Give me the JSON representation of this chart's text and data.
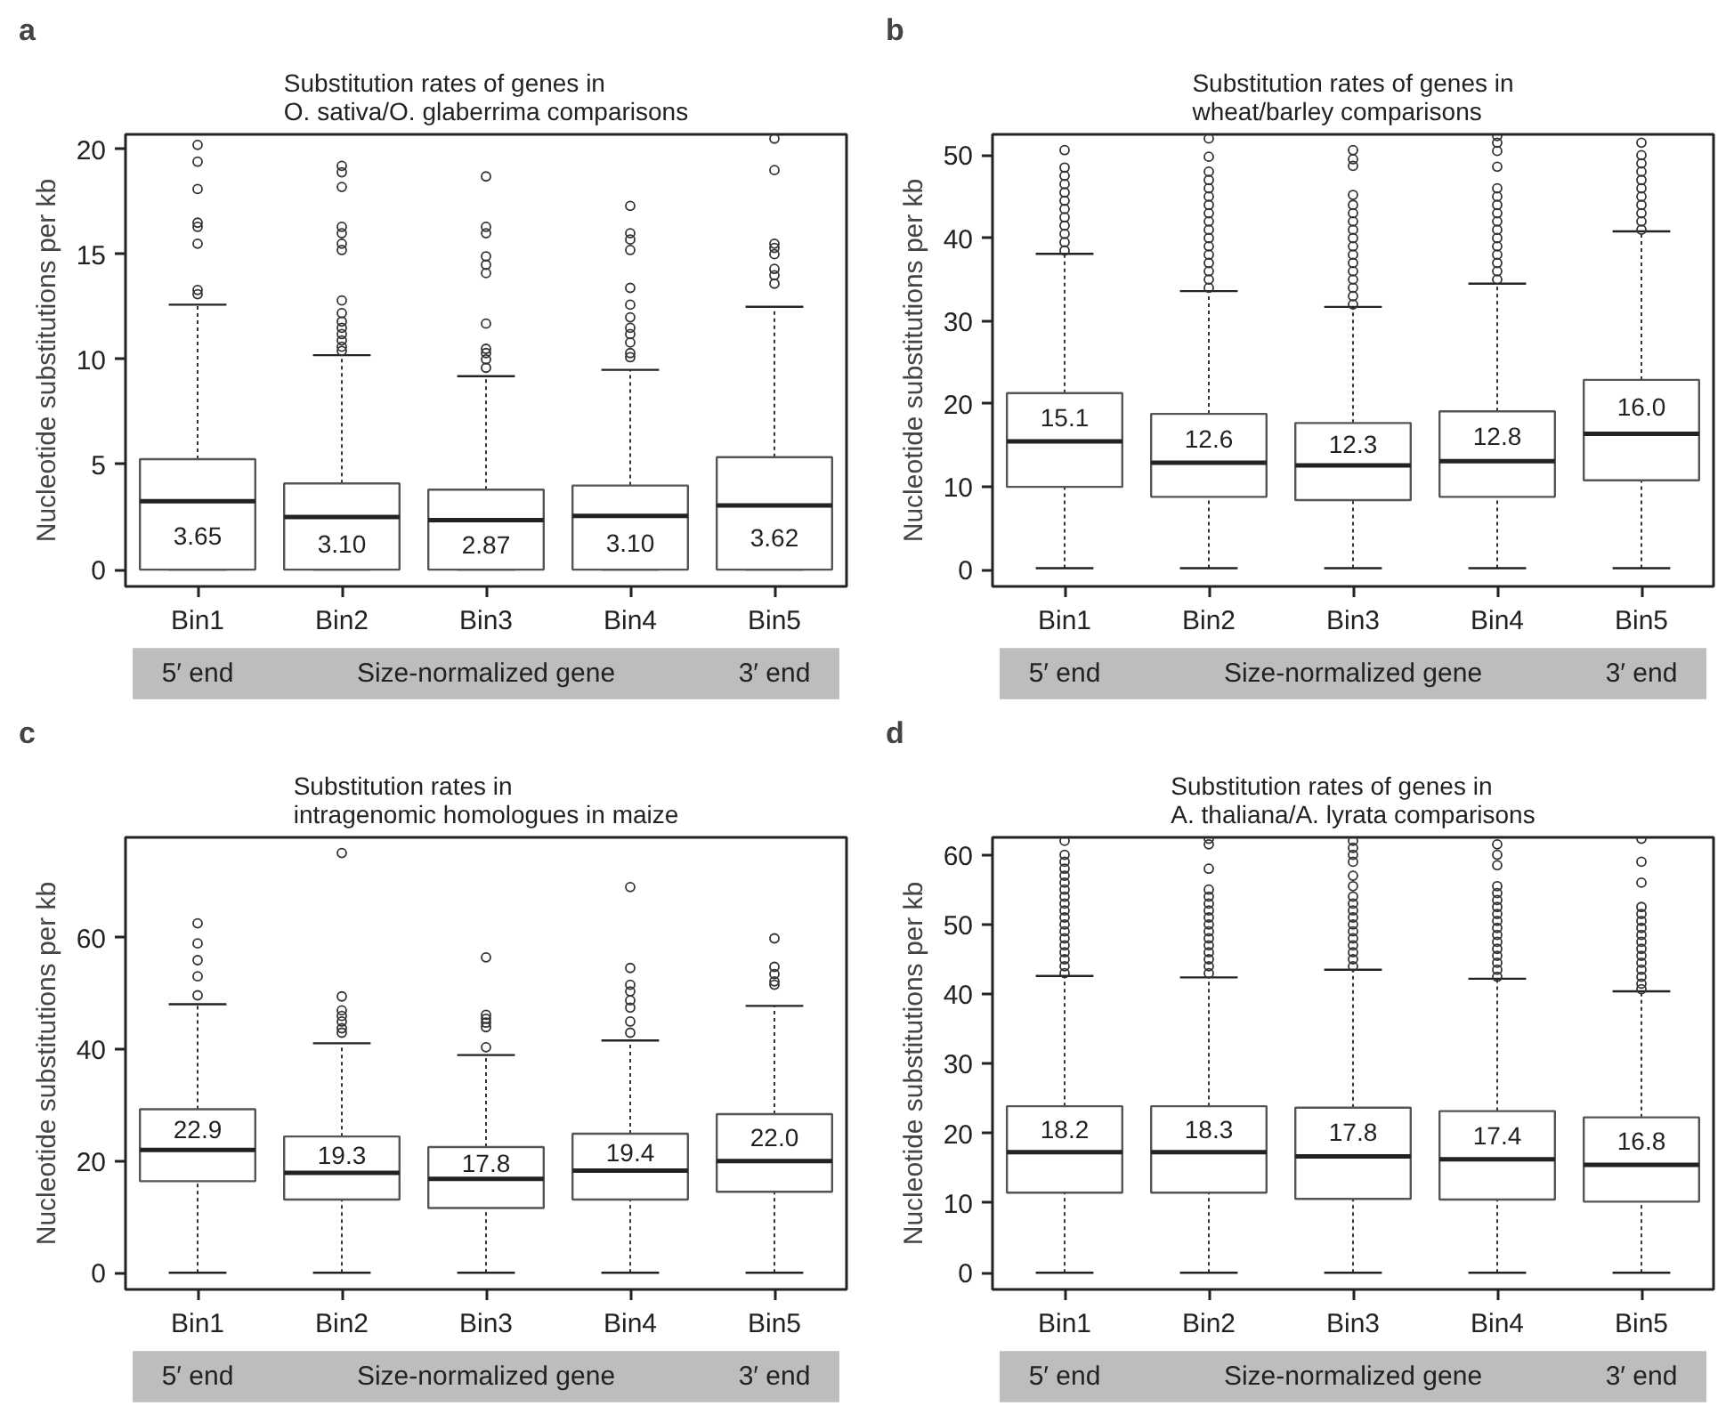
{
  "chart_data": [
    {
      "type": "box",
      "title": "Substitution rates of genes in\nO. sativa/O. glaberrima comparisons",
      "ylabel": "Nucleotide substitutions per kb",
      "categories": [
        "Bin1",
        "Bin2",
        "Bin3",
        "Bin4",
        "Bin5"
      ],
      "ylim": [
        -0.8,
        20.7
      ],
      "yticks": [
        0,
        5,
        10,
        15,
        20
      ],
      "annotations": [
        "a",
        "5′ end",
        "Size-normalized gene",
        "3′ end"
      ],
      "value_labels": [
        "3.65",
        "3.10",
        "2.87",
        "3.10",
        "3.62"
      ],
      "boxes": [
        {
          "low": 0,
          "q1": 0,
          "median": 3.25,
          "q3": 5.25,
          "high": 12.6,
          "outliers": [
            13.1,
            13.3,
            15.5,
            16.3,
            16.5,
            18.1,
            19.4,
            20.2
          ]
        },
        {
          "low": 0,
          "q1": 0,
          "median": 2.5,
          "q3": 4.1,
          "high": 10.2,
          "outliers": [
            10.4,
            10.6,
            10.9,
            11.2,
            11.5,
            11.8,
            12.2,
            12.8,
            15.2,
            15.5,
            16.0,
            16.3,
            18.2,
            18.9,
            19.2
          ]
        },
        {
          "low": 0,
          "q1": 0,
          "median": 2.35,
          "q3": 3.8,
          "high": 9.2,
          "outliers": [
            9.6,
            10.0,
            10.3,
            10.5,
            11.7,
            14.1,
            14.5,
            14.9,
            16.0,
            16.3,
            18.7
          ]
        },
        {
          "low": 0,
          "q1": 0,
          "median": 2.55,
          "q3": 4.0,
          "high": 9.5,
          "outliers": [
            10.1,
            10.3,
            10.8,
            11.2,
            11.5,
            12.0,
            12.6,
            13.4,
            15.2,
            15.7,
            16.0,
            17.3
          ]
        },
        {
          "low": 0,
          "q1": 0,
          "median": 3.05,
          "q3": 5.35,
          "high": 12.5,
          "outliers": [
            13.6,
            14.0,
            14.3,
            15.0,
            15.3,
            15.5,
            19.0,
            20.5
          ]
        }
      ]
    },
    {
      "type": "box",
      "title": "Substitution rates of genes in\nwheat/barley comparisons",
      "ylabel": "Nucleotide substitutions per kb",
      "categories": [
        "Bin1",
        "Bin2",
        "Bin3",
        "Bin4",
        "Bin5"
      ],
      "ylim": [
        -2,
        52.5
      ],
      "yticks": [
        0,
        10,
        20,
        30,
        40,
        50
      ],
      "annotations": [
        "b",
        "5′ end",
        "Size-normalized gene",
        "3′ end"
      ],
      "value_labels": [
        "15.1",
        "12.6",
        "12.3",
        "12.8",
        "16.0"
      ],
      "boxes": [
        {
          "low": 0.2,
          "q1": 10.0,
          "median": 15.5,
          "q3": 21.3,
          "high": 38.1,
          "outliers": [
            38.5,
            39.5,
            40.5,
            41.5,
            42.5,
            43.5,
            44.5,
            45.5,
            46.5,
            47.5,
            48.5,
            50.6
          ]
        },
        {
          "low": 0.2,
          "q1": 8.8,
          "median": 12.9,
          "q3": 18.8,
          "high": 33.6,
          "outliers": [
            34,
            35,
            36,
            37,
            38,
            39,
            40,
            41,
            42,
            43,
            44,
            45,
            46,
            47,
            48,
            49.8,
            52.0
          ]
        },
        {
          "low": 0.2,
          "q1": 8.4,
          "median": 12.6,
          "q3": 17.7,
          "high": 31.7,
          "outliers": [
            32,
            33,
            34,
            35,
            36,
            37,
            38,
            39,
            40,
            41,
            42,
            43,
            44,
            45.2,
            48.7,
            49.5,
            50.6
          ]
        },
        {
          "low": 0.2,
          "q1": 8.8,
          "median": 13.1,
          "q3": 19.1,
          "high": 34.5,
          "outliers": [
            35,
            36,
            37,
            38,
            39,
            40,
            41,
            42,
            43,
            44,
            45,
            46,
            48.6,
            50.5,
            51.5,
            52.3
          ]
        },
        {
          "low": 0.2,
          "q1": 10.8,
          "median": 16.4,
          "q3": 22.9,
          "high": 40.8,
          "outliers": [
            41,
            42,
            43,
            44,
            45,
            46,
            47,
            48,
            49,
            50,
            51.5
          ]
        }
      ]
    },
    {
      "type": "box",
      "title": "Substitution rates in\nintragenomic homologues in maize",
      "ylabel": "Nucleotide substitutions per kb",
      "categories": [
        "Bin1",
        "Bin2",
        "Bin3",
        "Bin4",
        "Bin5"
      ],
      "ylim": [
        -3,
        78
      ],
      "yticks": [
        0,
        20,
        40,
        60
      ],
      "annotations": [
        "c",
        "5′ end",
        "Size-normalized gene",
        "3′ end"
      ],
      "value_labels": [
        "22.9",
        "19.3",
        "17.8",
        "19.4",
        "22.0"
      ],
      "boxes": [
        {
          "low": 0,
          "q1": 16.4,
          "median": 22.0,
          "q3": 29.3,
          "high": 48.1,
          "outliers": [
            49.7,
            53.1,
            56.0,
            59.0,
            62.6
          ]
        },
        {
          "low": 0,
          "q1": 13.1,
          "median": 17.9,
          "q3": 24.4,
          "high": 41.1,
          "outliers": [
            43.0,
            43.8,
            45.0,
            46.0,
            47.0,
            49.5,
            75.2
          ]
        },
        {
          "low": 0,
          "q1": 11.6,
          "median": 16.8,
          "q3": 22.5,
          "high": 39.0,
          "outliers": [
            40.4,
            44.0,
            44.8,
            45.5,
            46.2,
            56.5
          ]
        },
        {
          "low": 0,
          "q1": 13.1,
          "median": 18.3,
          "q3": 24.9,
          "high": 41.6,
          "outliers": [
            43.0,
            45.0,
            47.5,
            48.8,
            50.4,
            51.6,
            54.6,
            69.1
          ]
        },
        {
          "low": 0,
          "q1": 14.5,
          "median": 20.0,
          "q3": 28.4,
          "high": 47.8,
          "outliers": [
            51.6,
            52.2,
            53.5,
            54.8,
            59.9
          ]
        }
      ]
    },
    {
      "type": "box",
      "title": "Substitution rates of genes in\nA. thaliana/A. lyrata comparisons",
      "ylabel": "Nucleotide substitutions per kb",
      "categories": [
        "Bin1",
        "Bin2",
        "Bin3",
        "Bin4",
        "Bin5"
      ],
      "ylim": [
        -2.4,
        62.5
      ],
      "yticks": [
        0,
        10,
        20,
        30,
        40,
        50,
        60
      ],
      "annotations": [
        "d",
        "5′ end",
        "Size-normalized gene",
        "3′ end"
      ],
      "value_labels": [
        "18.2",
        "18.3",
        "17.8",
        "17.4",
        "16.8"
      ],
      "boxes": [
        {
          "low": 0,
          "q1": 11.5,
          "median": 17.3,
          "q3": 23.9,
          "high": 42.6,
          "outliers": [
            43,
            44,
            45,
            46,
            47,
            48,
            49,
            50,
            51,
            52,
            53,
            54,
            55,
            56,
            57,
            58,
            59,
            60,
            62
          ]
        },
        {
          "low": 0,
          "q1": 11.5,
          "median": 17.3,
          "q3": 23.9,
          "high": 42.4,
          "outliers": [
            43,
            44,
            45,
            46,
            47,
            48,
            49,
            50,
            51,
            52,
            53,
            54,
            55,
            58.0,
            61.5,
            62.3
          ]
        },
        {
          "low": 0,
          "q1": 10.6,
          "median": 16.7,
          "q3": 23.7,
          "high": 43.5,
          "outliers": [
            44,
            45,
            46,
            47,
            48,
            49,
            50,
            51,
            52,
            53,
            54,
            55.5,
            57,
            59,
            60,
            61,
            62
          ]
        },
        {
          "low": 0,
          "q1": 10.5,
          "median": 16.3,
          "q3": 23.2,
          "high": 42.2,
          "outliers": [
            42.5,
            43.5,
            44.5,
            45.5,
            46.5,
            47.5,
            48.5,
            49.5,
            50.5,
            51.5,
            52.5,
            53.5,
            54.5,
            55.5,
            58.5,
            60,
            61.5
          ]
        },
        {
          "low": 0,
          "q1": 10.2,
          "median": 15.5,
          "q3": 22.3,
          "high": 40.4,
          "outliers": [
            40.7,
            41.5,
            42.5,
            43.5,
            44.5,
            45.5,
            46.5,
            47.5,
            48.5,
            49.5,
            50.5,
            51.5,
            52.5,
            56,
            59,
            62.3
          ]
        }
      ]
    }
  ]
}
